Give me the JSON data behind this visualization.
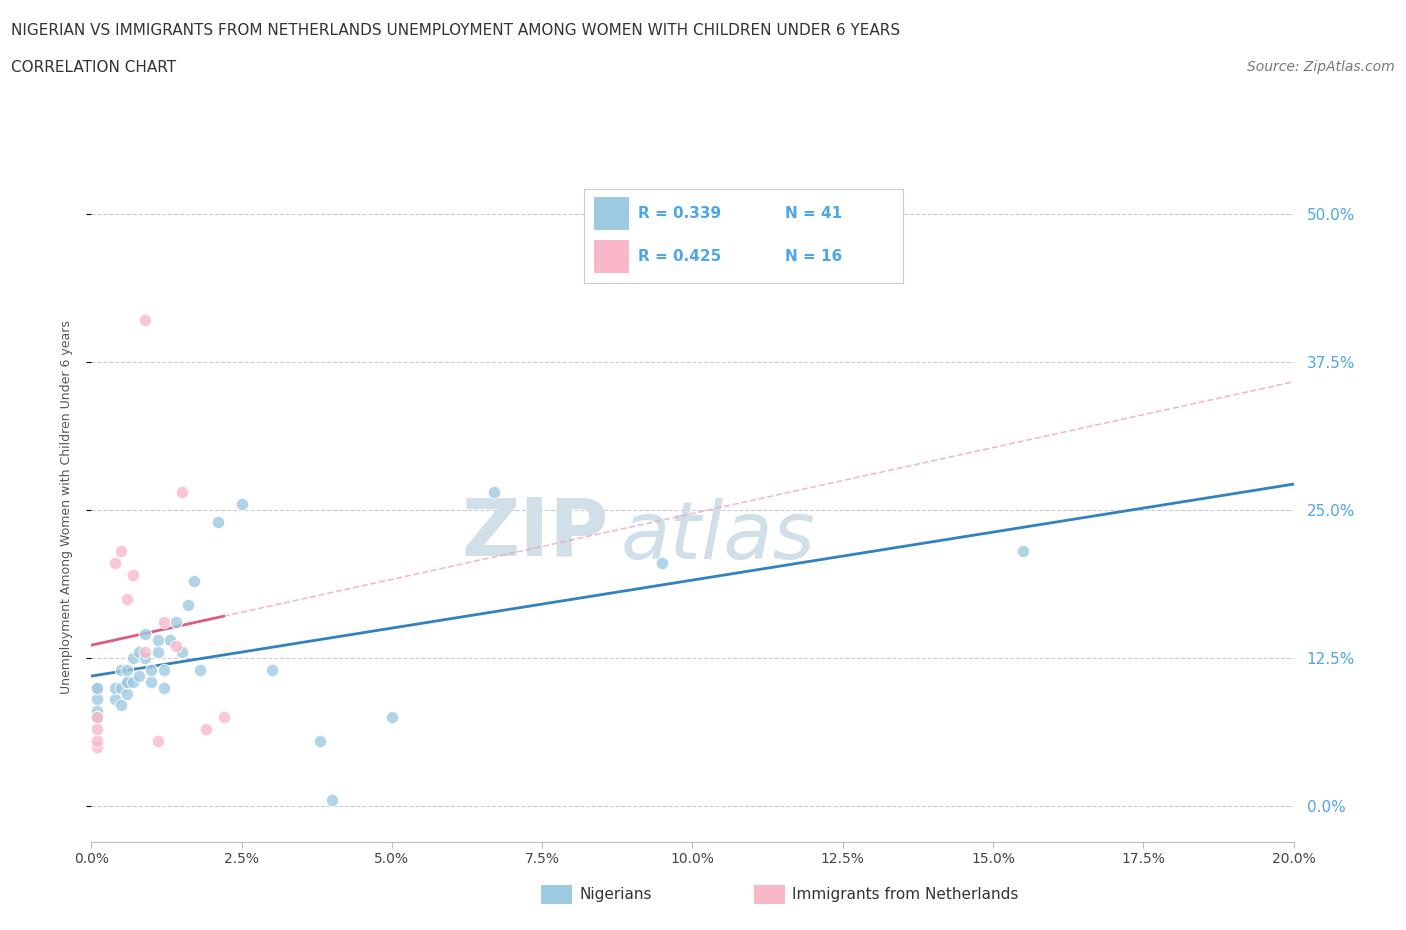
{
  "title_line1": "NIGERIAN VS IMMIGRANTS FROM NETHERLANDS UNEMPLOYMENT AMONG WOMEN WITH CHILDREN UNDER 6 YEARS",
  "title_line2": "CORRELATION CHART",
  "source": "Source: ZipAtlas.com",
  "xlabel_ticks": [
    "0.0%",
    "2.5%",
    "5.0%",
    "7.5%",
    "10.0%",
    "12.5%",
    "15.0%",
    "17.5%",
    "20.0%"
  ],
  "ylabel_ticks_right": [
    "0.0%",
    "12.5%",
    "25.0%",
    "37.5%",
    "50.0%"
  ],
  "xlim": [
    0.0,
    0.2
  ],
  "ylim": [
    -0.03,
    0.535
  ],
  "ylabel": "Unemployment Among Women with Children Under 6 years",
  "nigerians_x": [
    0.001,
    0.001,
    0.001,
    0.001,
    0.001,
    0.004,
    0.004,
    0.005,
    0.005,
    0.005,
    0.006,
    0.006,
    0.006,
    0.006,
    0.007,
    0.007,
    0.008,
    0.008,
    0.009,
    0.009,
    0.01,
    0.01,
    0.011,
    0.011,
    0.012,
    0.012,
    0.013,
    0.014,
    0.015,
    0.016,
    0.017,
    0.018,
    0.021,
    0.025,
    0.03,
    0.038,
    0.04,
    0.05,
    0.067,
    0.095,
    0.155
  ],
  "nigerians_y": [
    0.09,
    0.1,
    0.08,
    0.1,
    0.075,
    0.09,
    0.1,
    0.085,
    0.1,
    0.115,
    0.095,
    0.105,
    0.105,
    0.115,
    0.105,
    0.125,
    0.11,
    0.13,
    0.125,
    0.145,
    0.105,
    0.115,
    0.13,
    0.14,
    0.1,
    0.115,
    0.14,
    0.155,
    0.13,
    0.17,
    0.19,
    0.115,
    0.24,
    0.255,
    0.115,
    0.055,
    0.005,
    0.075,
    0.265,
    0.205,
    0.215
  ],
  "netherlands_x": [
    0.001,
    0.001,
    0.001,
    0.001,
    0.004,
    0.005,
    0.006,
    0.007,
    0.009,
    0.009,
    0.011,
    0.012,
    0.014,
    0.015,
    0.019,
    0.022
  ],
  "netherlands_y": [
    0.05,
    0.055,
    0.065,
    0.075,
    0.205,
    0.215,
    0.175,
    0.195,
    0.13,
    0.41,
    0.055,
    0.155,
    0.135,
    0.265,
    0.065,
    0.075
  ],
  "r_nigerian": 0.339,
  "n_nigerian": 41,
  "r_netherlands": 0.425,
  "n_netherlands": 16,
  "color_nigerian": "#9ecae1",
  "color_netherlands": "#f9b8c8",
  "line_color_nigerian": "#3182bd",
  "line_color_netherlands": "#e05a80",
  "line_color_netherlands_dashed": "#e8a0b8",
  "scatter_size": 80,
  "background_color": "#ffffff",
  "grid_color": "#cccccc",
  "watermark_zip": "ZIP",
  "watermark_atlas": "atlas",
  "watermark_color": "#d0dfe8",
  "title_fontsize": 11,
  "subtitle_fontsize": 11,
  "source_fontsize": 10,
  "tick_color": "#4da6e8",
  "bottom_legend_nigerian": "Nigerians",
  "bottom_legend_netherlands": "Immigrants from Netherlands"
}
